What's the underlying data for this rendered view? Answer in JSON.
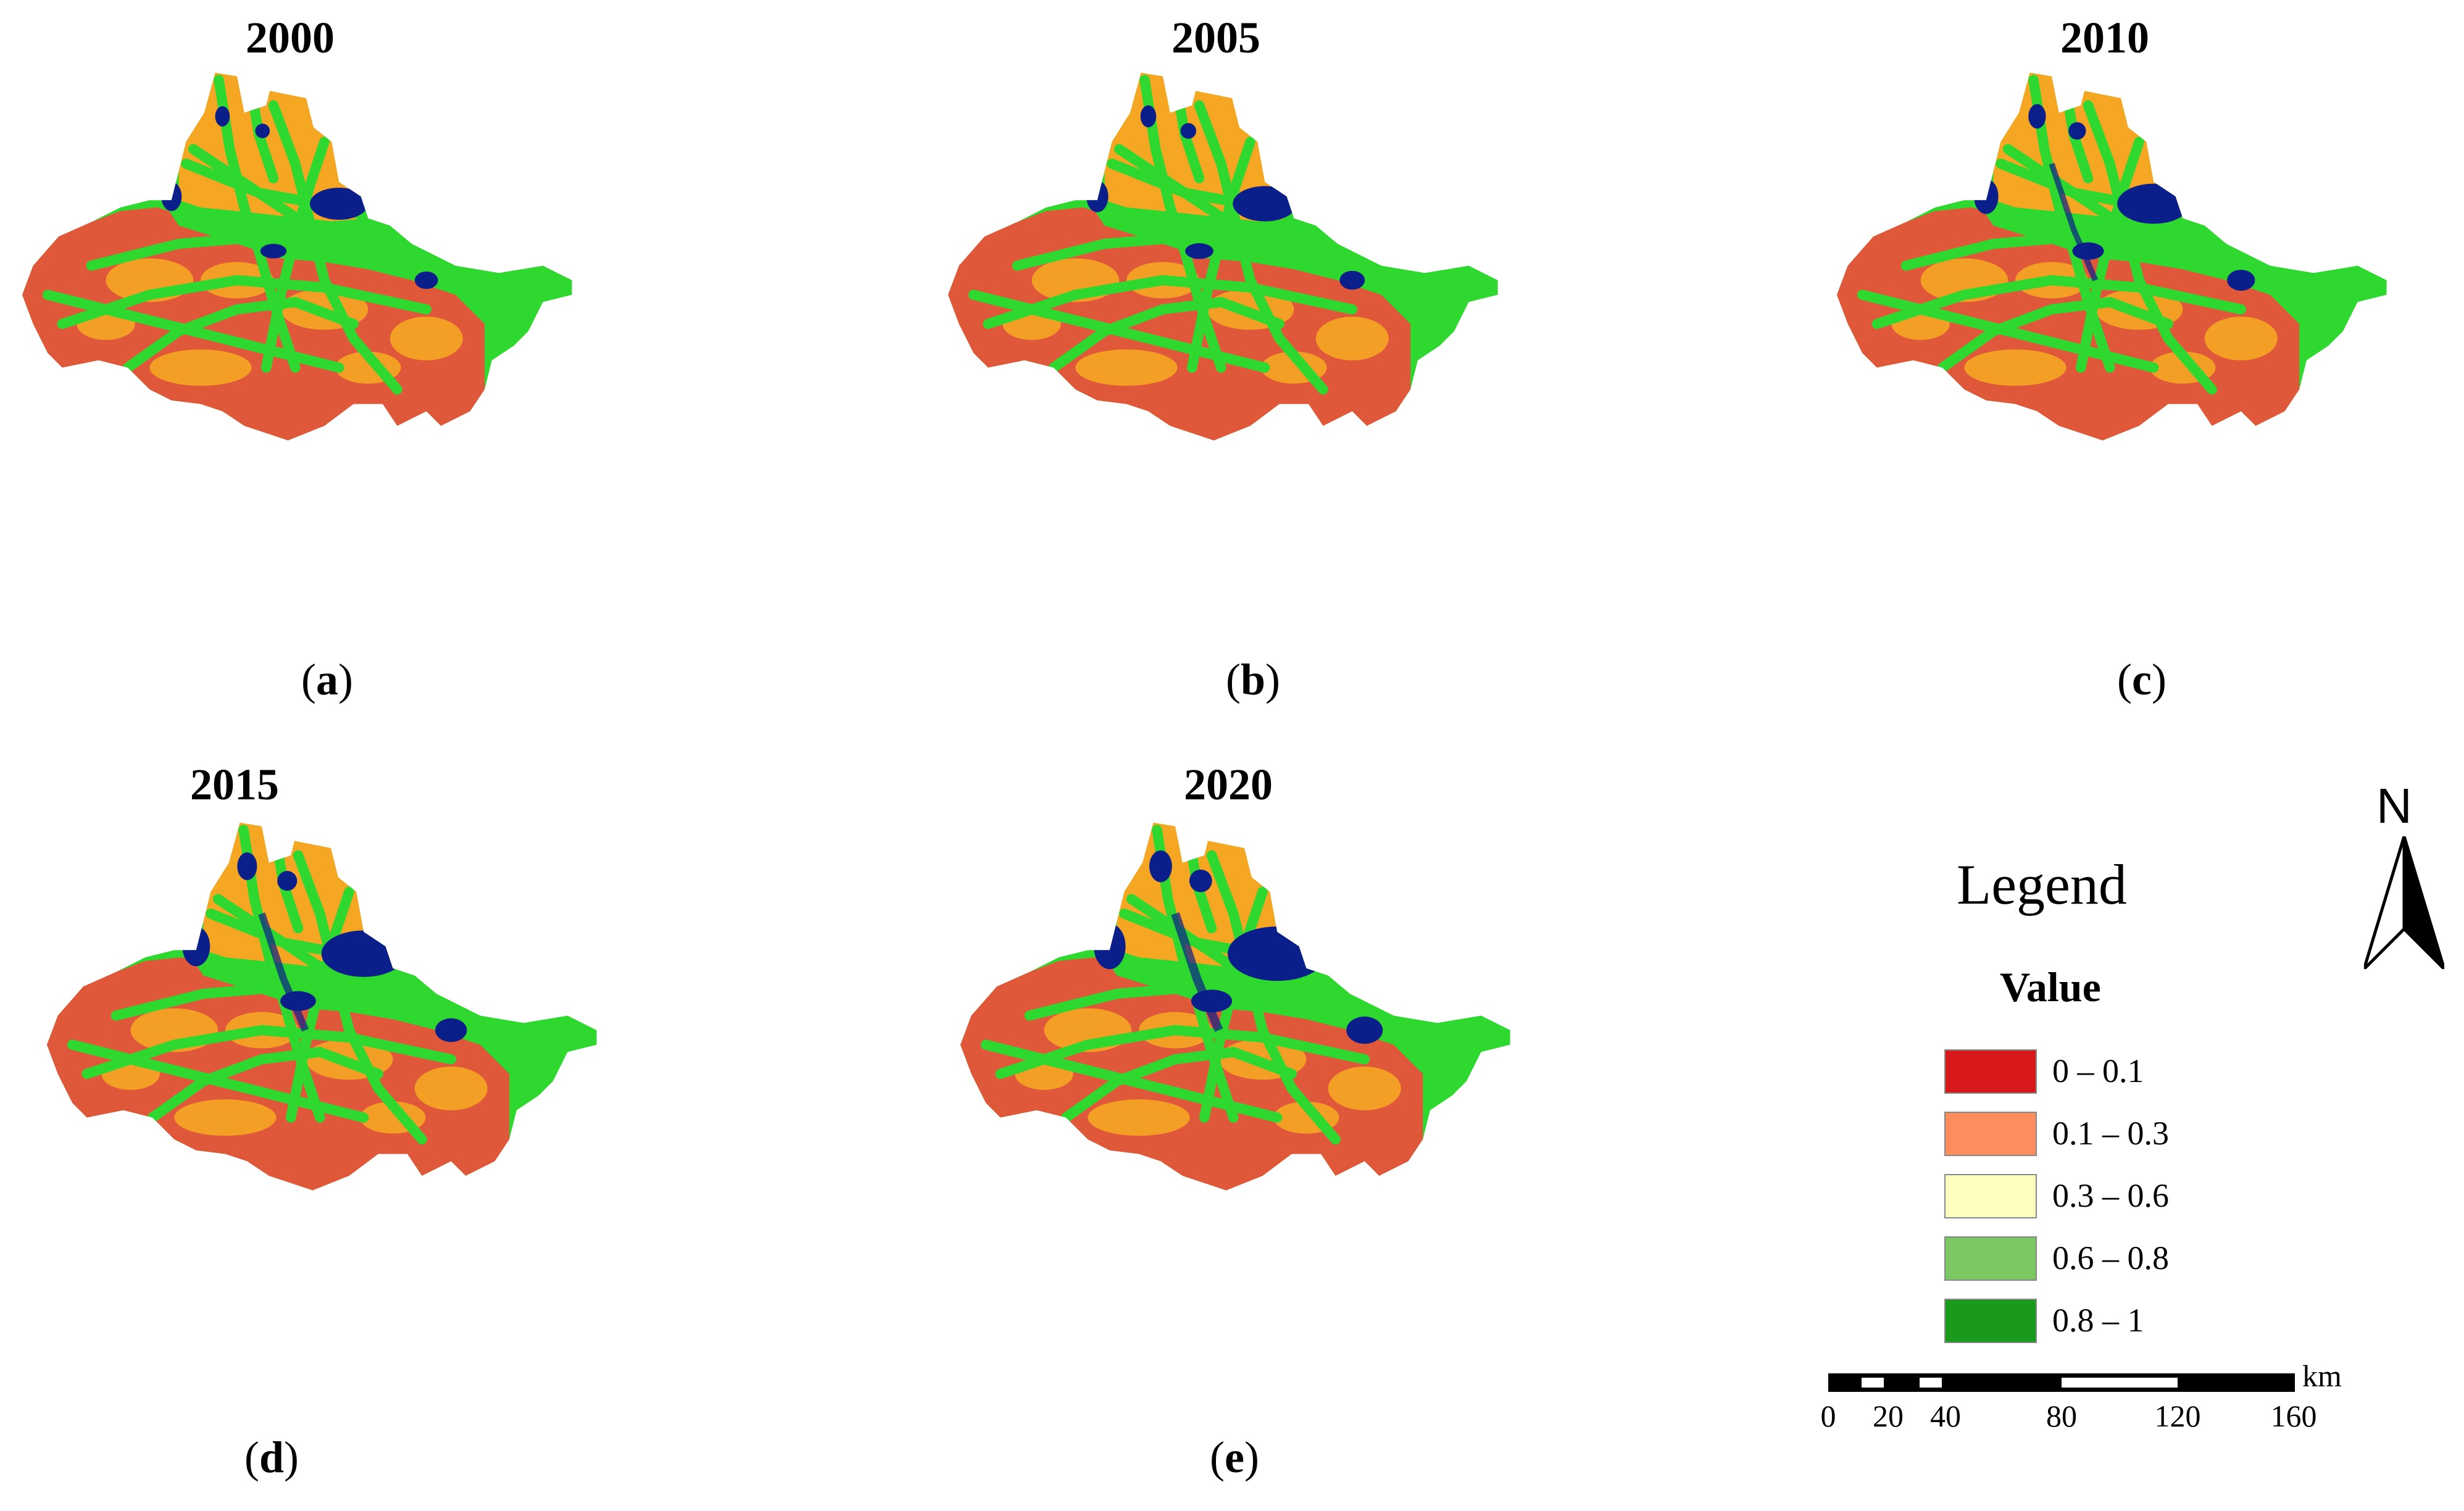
{
  "panels": [
    {
      "title": "2000",
      "label": "a"
    },
    {
      "title": "2005",
      "label": "b"
    },
    {
      "title": "2010",
      "label": "c"
    },
    {
      "title": "2015",
      "label": "d"
    },
    {
      "title": "2020",
      "label": "e"
    }
  ],
  "legend": {
    "title": "Legend",
    "subtitle": "Value",
    "classes": [
      {
        "label": "0 – 0.1",
        "color": "#d7191c"
      },
      {
        "label": "0.1 – 0.3",
        "color": "#fd8d5c"
      },
      {
        "label": "0.3 – 0.6",
        "color": "#ffffc0"
      },
      {
        "label": "0.6 – 0.8",
        "color": "#7bc862"
      },
      {
        "label": "0.8 – 1",
        "color": "#1a9a1a"
      }
    ]
  },
  "map_colors": {
    "south_hills": "#e0583a",
    "northern_plain": "#f5a623",
    "corridors": "#2fd82f",
    "urban": "#0a1f8a"
  },
  "north_arrow": {
    "letter": "N"
  },
  "scale_bar": {
    "unit": "km",
    "ticks": [
      "0",
      "20",
      "40",
      "80",
      "120",
      "160"
    ]
  }
}
